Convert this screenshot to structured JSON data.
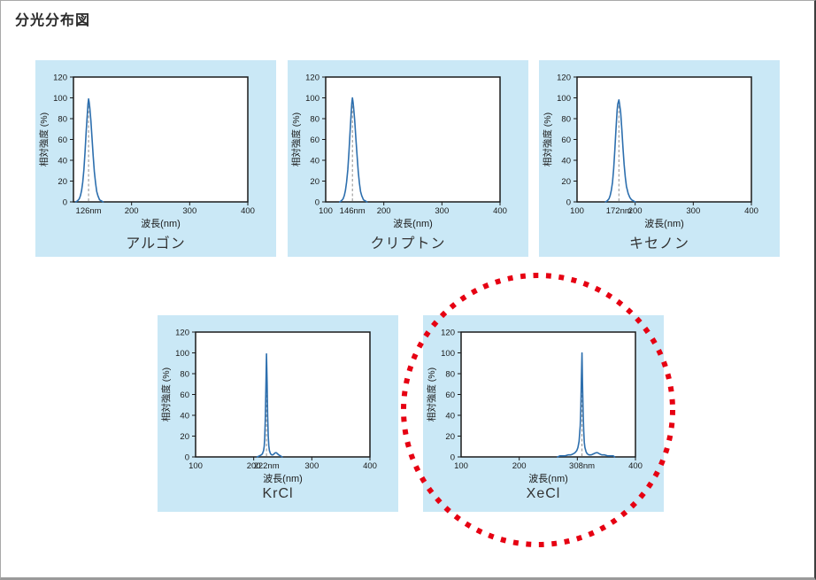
{
  "page": {
    "title": "分光分布図"
  },
  "colors": {
    "panel_bg": "#cae8f6",
    "curve": "#2d6fae",
    "plot_border": "#1a1a1a",
    "dashed_line": "#8f8f8f",
    "highlight_red": "#e60012",
    "text": "#333333"
  },
  "chart_data": [
    {
      "type": "line",
      "title": "アルゴン",
      "xlabel": "波長(nm)",
      "ylabel": "相対強度 (%)",
      "xlim": [
        100,
        400
      ],
      "ylim": [
        0,
        120
      ],
      "yticks": [
        0,
        20,
        40,
        60,
        80,
        100,
        120
      ],
      "xticks": [
        200,
        300,
        400
      ],
      "xtick_labels": [
        {
          "x": 126,
          "label": "126nm"
        },
        {
          "x": 200,
          "label": "200"
        },
        {
          "x": 300,
          "label": "300"
        },
        {
          "x": 400,
          "label": "400"
        }
      ],
      "peak": {
        "x": 126,
        "value": 99,
        "label": "126nm"
      },
      "points": [
        [
          104,
          0
        ],
        [
          107,
          1
        ],
        [
          110,
          3
        ],
        [
          112,
          6
        ],
        [
          114,
          11
        ],
        [
          116,
          19
        ],
        [
          118,
          31
        ],
        [
          120,
          48
        ],
        [
          122,
          68
        ],
        [
          124,
          86
        ],
        [
          125,
          94
        ],
        [
          126,
          99
        ],
        [
          127,
          96
        ],
        [
          128,
          91
        ],
        [
          130,
          78
        ],
        [
          132,
          61
        ],
        [
          134,
          44
        ],
        [
          136,
          29
        ],
        [
          138,
          18
        ],
        [
          140,
          10
        ],
        [
          142,
          6
        ],
        [
          145,
          2
        ],
        [
          148,
          1
        ],
        [
          151,
          0
        ]
      ]
    },
    {
      "type": "line",
      "title": "クリプトン",
      "xlabel": "波長(nm)",
      "ylabel": "相対強度 (%)",
      "xlim": [
        100,
        400
      ],
      "ylim": [
        0,
        120
      ],
      "yticks": [
        0,
        20,
        40,
        60,
        80,
        100,
        120
      ],
      "xticks": [
        200,
        300,
        400
      ],
      "xtick_labels": [
        {
          "x": 100,
          "label": "100"
        },
        {
          "x": 146,
          "label": "146nm"
        },
        {
          "x": 200,
          "label": "200"
        },
        {
          "x": 300,
          "label": "300"
        },
        {
          "x": 400,
          "label": "400"
        }
      ],
      "peak": {
        "x": 146,
        "value": 100,
        "label": "146nm"
      },
      "points": [
        [
          124,
          0
        ],
        [
          127,
          1
        ],
        [
          130,
          3
        ],
        [
          132,
          6
        ],
        [
          134,
          11
        ],
        [
          136,
          19
        ],
        [
          138,
          31
        ],
        [
          140,
          48
        ],
        [
          142,
          68
        ],
        [
          144,
          87
        ],
        [
          145,
          95
        ],
        [
          146,
          100
        ],
        [
          147,
          96
        ],
        [
          148,
          91
        ],
        [
          150,
          78
        ],
        [
          152,
          61
        ],
        [
          154,
          44
        ],
        [
          156,
          29
        ],
        [
          158,
          18
        ],
        [
          160,
          10
        ],
        [
          162,
          6
        ],
        [
          165,
          2
        ],
        [
          168,
          1
        ],
        [
          171,
          0
        ]
      ]
    },
    {
      "type": "line",
      "title": "キセノン",
      "xlabel": "波長(nm)",
      "ylabel": "相対強度 (%)",
      "xlim": [
        100,
        400
      ],
      "ylim": [
        0,
        120
      ],
      "yticks": [
        0,
        20,
        40,
        60,
        80,
        100,
        120
      ],
      "xticks": [
        200,
        300,
        400
      ],
      "xtick_labels": [
        {
          "x": 100,
          "label": "100"
        },
        {
          "x": 172,
          "label": "172nm"
        },
        {
          "x": 200,
          "label": "200"
        },
        {
          "x": 300,
          "label": "300"
        },
        {
          "x": 400,
          "label": "400"
        }
      ],
      "peak": {
        "x": 172,
        "value": 98,
        "label": "172nm"
      },
      "points": [
        [
          149,
          0
        ],
        [
          152,
          1
        ],
        [
          155,
          3
        ],
        [
          157,
          6
        ],
        [
          159,
          11
        ],
        [
          161,
          19
        ],
        [
          163,
          32
        ],
        [
          165,
          50
        ],
        [
          167,
          70
        ],
        [
          169,
          88
        ],
        [
          170,
          94
        ],
        [
          172,
          98
        ],
        [
          173,
          95
        ],
        [
          175,
          86
        ],
        [
          177,
          70
        ],
        [
          179,
          52
        ],
        [
          181,
          36
        ],
        [
          183,
          24
        ],
        [
          185,
          15
        ],
        [
          188,
          8
        ],
        [
          191,
          4
        ],
        [
          194,
          2
        ],
        [
          197,
          1
        ],
        [
          200,
          0
        ]
      ]
    },
    {
      "type": "line",
      "title": "KrCl",
      "xlabel": "波長(nm)",
      "ylabel": "相対強度 (%)",
      "xlim": [
        100,
        400
      ],
      "ylim": [
        0,
        120
      ],
      "yticks": [
        0,
        20,
        40,
        60,
        80,
        100,
        120
      ],
      "xticks": [
        200,
        300,
        400
      ],
      "xtick_labels": [
        {
          "x": 100,
          "label": "100"
        },
        {
          "x": 200,
          "label": "200"
        },
        {
          "x": 222,
          "label": "222nm"
        },
        {
          "x": 300,
          "label": "300"
        },
        {
          "x": 400,
          "label": "400"
        }
      ],
      "peak": {
        "x": 222,
        "value": 99,
        "label": "222nm"
      },
      "points": [
        [
          206,
          0
        ],
        [
          210,
          1
        ],
        [
          213,
          2
        ],
        [
          215,
          3
        ],
        [
          217,
          6
        ],
        [
          218,
          10
        ],
        [
          219,
          18
        ],
        [
          220,
          38
        ],
        [
          221,
          70
        ],
        [
          222,
          99
        ],
        [
          223,
          72
        ],
        [
          224,
          40
        ],
        [
          225,
          20
        ],
        [
          226,
          11
        ],
        [
          227,
          6
        ],
        [
          229,
          3
        ],
        [
          231,
          2
        ],
        [
          233,
          2
        ],
        [
          235,
          3
        ],
        [
          237,
          4
        ],
        [
          239,
          4
        ],
        [
          241,
          3
        ],
        [
          243,
          2
        ],
        [
          246,
          1
        ],
        [
          249,
          0
        ]
      ]
    },
    {
      "type": "line",
      "title": "XeCl",
      "xlabel": "波長(nm)",
      "ylabel": "相対強度 (%)",
      "xlim": [
        100,
        400
      ],
      "ylim": [
        0,
        120
      ],
      "yticks": [
        0,
        20,
        40,
        60,
        80,
        100,
        120
      ],
      "xticks": [
        200,
        300,
        400
      ],
      "xtick_labels": [
        {
          "x": 100,
          "label": "100"
        },
        {
          "x": 200,
          "label": "200"
        },
        {
          "x": 308,
          "label": "308nm"
        },
        {
          "x": 400,
          "label": "400"
        }
      ],
      "peak": {
        "x": 308,
        "value": 100,
        "label": "308nm"
      },
      "points": [
        [
          266,
          0
        ],
        [
          270,
          1
        ],
        [
          274,
          1
        ],
        [
          279,
          1
        ],
        [
          284,
          2
        ],
        [
          289,
          2
        ],
        [
          293,
          3
        ],
        [
          296,
          4
        ],
        [
          299,
          6
        ],
        [
          301,
          9
        ],
        [
          303,
          15
        ],
        [
          305,
          30
        ],
        [
          306,
          48
        ],
        [
          307,
          75
        ],
        [
          308,
          100
        ],
        [
          309,
          70
        ],
        [
          310,
          42
        ],
        [
          311,
          24
        ],
        [
          312,
          14
        ],
        [
          313,
          9
        ],
        [
          315,
          5
        ],
        [
          317,
          3
        ],
        [
          320,
          2
        ],
        [
          324,
          2
        ],
        [
          328,
          3
        ],
        [
          332,
          4
        ],
        [
          335,
          4
        ],
        [
          338,
          3
        ],
        [
          342,
          2
        ],
        [
          347,
          2
        ],
        [
          352,
          1
        ],
        [
          357,
          1
        ],
        [
          362,
          1
        ],
        [
          364,
          0
        ]
      ]
    }
  ],
  "highlight": {
    "shape": "dotted-circle",
    "target": "XeCl"
  }
}
